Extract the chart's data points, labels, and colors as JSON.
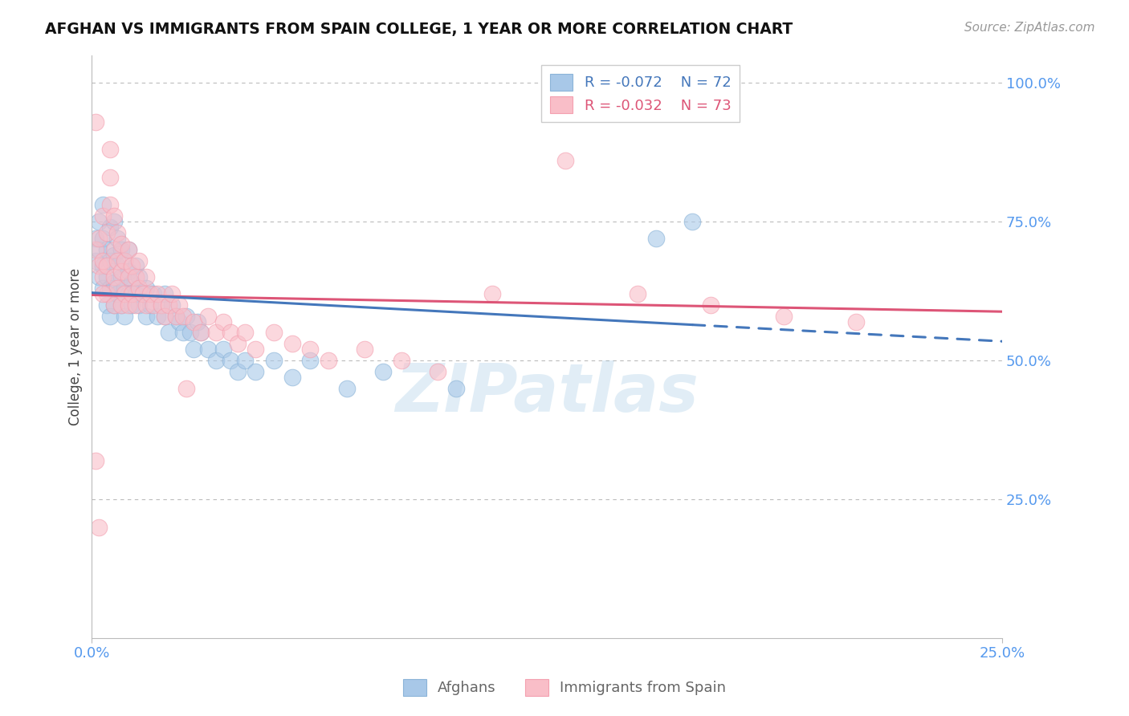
{
  "title": "AFGHAN VS IMMIGRANTS FROM SPAIN COLLEGE, 1 YEAR OR MORE CORRELATION CHART",
  "source": "Source: ZipAtlas.com",
  "ylabel": "College, 1 year or more",
  "ylabel_ticks": [
    "100.0%",
    "75.0%",
    "50.0%",
    "25.0%"
  ],
  "ylabel_tick_vals": [
    1.0,
    0.75,
    0.5,
    0.25
  ],
  "xlim": [
    0.0,
    0.25
  ],
  "ylim": [
    0.0,
    1.05
  ],
  "blue_color": "#8BB4D8",
  "pink_color": "#F4A0B0",
  "blue_fill_color": "#A8C8E8",
  "pink_fill_color": "#F9BEC8",
  "blue_line_color": "#4477BB",
  "pink_line_color": "#DD5577",
  "legend_r_blue": "R = -0.072",
  "legend_n_blue": "N = 72",
  "legend_r_pink": "R = -0.032",
  "legend_n_pink": "N = 73",
  "blue_intercept": 0.622,
  "blue_slope": -0.35,
  "pink_intercept": 0.618,
  "pink_slope": -0.12,
  "blue_scatter_x": [
    0.001,
    0.001,
    0.002,
    0.002,
    0.002,
    0.003,
    0.003,
    0.003,
    0.003,
    0.004,
    0.004,
    0.004,
    0.005,
    0.005,
    0.005,
    0.005,
    0.006,
    0.006,
    0.006,
    0.006,
    0.007,
    0.007,
    0.007,
    0.008,
    0.008,
    0.008,
    0.009,
    0.009,
    0.009,
    0.01,
    0.01,
    0.01,
    0.011,
    0.011,
    0.012,
    0.012,
    0.013,
    0.013,
    0.014,
    0.015,
    0.015,
    0.016,
    0.017,
    0.018,
    0.019,
    0.02,
    0.02,
    0.021,
    0.022,
    0.023,
    0.024,
    0.025,
    0.026,
    0.027,
    0.028,
    0.029,
    0.03,
    0.032,
    0.034,
    0.036,
    0.038,
    0.04,
    0.042,
    0.045,
    0.05,
    0.055,
    0.06,
    0.07,
    0.08,
    0.1,
    0.155,
    0.165
  ],
  "blue_scatter_y": [
    0.68,
    0.72,
    0.65,
    0.7,
    0.75,
    0.63,
    0.67,
    0.72,
    0.78,
    0.6,
    0.65,
    0.7,
    0.58,
    0.63,
    0.68,
    0.74,
    0.6,
    0.64,
    0.69,
    0.75,
    0.62,
    0.67,
    0.72,
    0.6,
    0.65,
    0.7,
    0.58,
    0.63,
    0.68,
    0.62,
    0.66,
    0.7,
    0.6,
    0.64,
    0.62,
    0.67,
    0.6,
    0.65,
    0.62,
    0.58,
    0.63,
    0.6,
    0.62,
    0.58,
    0.6,
    0.58,
    0.62,
    0.55,
    0.6,
    0.58,
    0.57,
    0.55,
    0.58,
    0.55,
    0.52,
    0.57,
    0.55,
    0.52,
    0.5,
    0.52,
    0.5,
    0.48,
    0.5,
    0.48,
    0.5,
    0.47,
    0.5,
    0.45,
    0.48,
    0.45,
    0.72,
    0.75
  ],
  "pink_scatter_x": [
    0.001,
    0.001,
    0.002,
    0.002,
    0.003,
    0.003,
    0.003,
    0.004,
    0.004,
    0.004,
    0.005,
    0.005,
    0.005,
    0.006,
    0.006,
    0.006,
    0.006,
    0.007,
    0.007,
    0.007,
    0.008,
    0.008,
    0.008,
    0.009,
    0.009,
    0.01,
    0.01,
    0.01,
    0.011,
    0.011,
    0.012,
    0.012,
    0.013,
    0.013,
    0.014,
    0.015,
    0.015,
    0.016,
    0.017,
    0.018,
    0.019,
    0.02,
    0.021,
    0.022,
    0.023,
    0.024,
    0.025,
    0.026,
    0.028,
    0.03,
    0.032,
    0.034,
    0.036,
    0.038,
    0.04,
    0.042,
    0.045,
    0.05,
    0.055,
    0.06,
    0.065,
    0.075,
    0.085,
    0.095,
    0.11,
    0.13,
    0.15,
    0.17,
    0.19,
    0.21,
    0.001,
    0.002,
    0.003
  ],
  "pink_scatter_y": [
    0.7,
    0.93,
    0.67,
    0.72,
    0.65,
    0.68,
    0.76,
    0.62,
    0.67,
    0.73,
    0.78,
    0.83,
    0.88,
    0.6,
    0.65,
    0.7,
    0.76,
    0.63,
    0.68,
    0.73,
    0.6,
    0.66,
    0.71,
    0.62,
    0.68,
    0.6,
    0.65,
    0.7,
    0.62,
    0.67,
    0.6,
    0.65,
    0.63,
    0.68,
    0.62,
    0.6,
    0.65,
    0.62,
    0.6,
    0.62,
    0.6,
    0.58,
    0.6,
    0.62,
    0.58,
    0.6,
    0.58,
    0.45,
    0.57,
    0.55,
    0.58,
    0.55,
    0.57,
    0.55,
    0.53,
    0.55,
    0.52,
    0.55,
    0.53,
    0.52,
    0.5,
    0.52,
    0.5,
    0.48,
    0.62,
    0.86,
    0.62,
    0.6,
    0.58,
    0.57,
    0.32,
    0.2,
    0.62
  ],
  "watermark": "ZIPatlas",
  "background_color": "#FFFFFF",
  "grid_color": "#BBBBBB",
  "axis_label_color": "#5599EE",
  "title_color": "#111111"
}
